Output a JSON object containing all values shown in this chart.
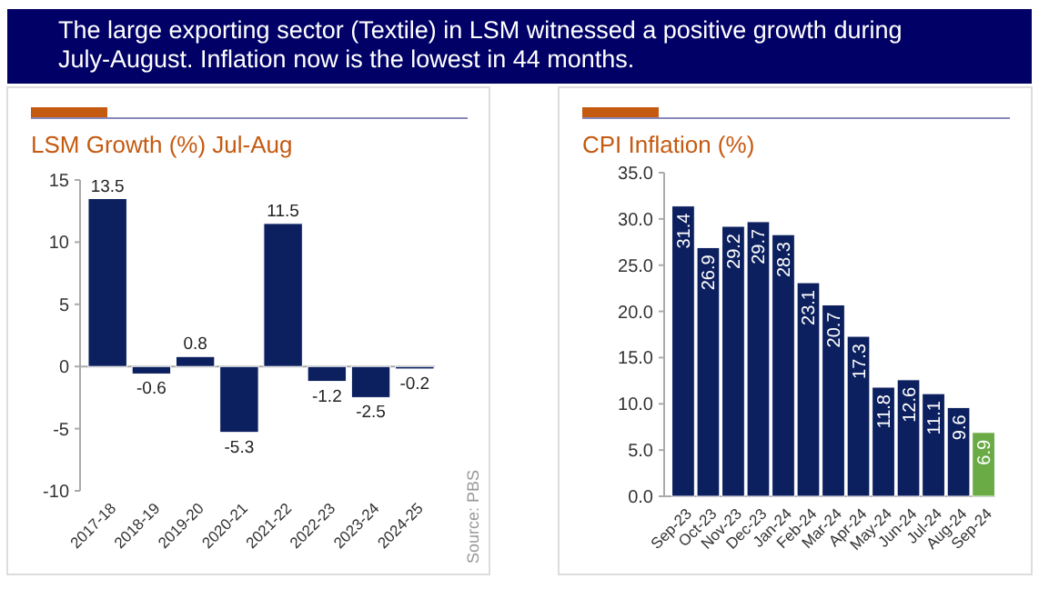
{
  "chart_data": [
    {
      "type": "other",
      "title": "The large exporting sector (Textile) in LSM witnessed a positive growth during July-August.  Inflation now is the lowest in 44 months."
    },
    {
      "type": "bar",
      "title": "LSM Growth (%) Jul-Aug",
      "categories": [
        "2017-18",
        "2018-19",
        "2019-20",
        "2020-21",
        "2021-22",
        "2022-23",
        "2023-24",
        "2024-25"
      ],
      "values": [
        13.5,
        -0.6,
        0.8,
        -5.3,
        11.5,
        -1.2,
        -2.5,
        -0.2
      ],
      "color": "#0c1f5e",
      "ylim": [
        -10,
        15
      ],
      "yticks": [
        -10,
        -5,
        0,
        5,
        10,
        15
      ],
      "data_labels": true,
      "annotations": [
        "Source: PBS"
      ]
    },
    {
      "type": "bar",
      "title": "CPI Inflation (%)",
      "categories": [
        "Sep-23",
        "Oct-23",
        "Nov-23",
        "Dec-23",
        "Jan-24",
        "Feb-24",
        "Mar-24",
        "Apr-24",
        "May-24",
        "Jun-24",
        "Jul-24",
        "Aug-24",
        "Sep-24"
      ],
      "values": [
        31.4,
        26.9,
        29.2,
        29.7,
        28.3,
        23.1,
        20.7,
        17.3,
        11.8,
        12.6,
        11.1,
        9.6,
        6.9
      ],
      "colors": [
        "#0c1f5e",
        "#0c1f5e",
        "#0c1f5e",
        "#0c1f5e",
        "#0c1f5e",
        "#0c1f5e",
        "#0c1f5e",
        "#0c1f5e",
        "#0c1f5e",
        "#0c1f5e",
        "#0c1f5e",
        "#0c1f5e",
        "#6aab45"
      ],
      "ylim": [
        0,
        35
      ],
      "yticks": [
        {
          "value": 0,
          "label": "0.0"
        },
        {
          "value": 5,
          "label": "5.0"
        },
        {
          "value": 10,
          "label": "10.0"
        },
        {
          "value": 15,
          "label": "15.0"
        },
        {
          "value": 20,
          "label": "20.0"
        },
        {
          "value": 25,
          "label": "25.0"
        },
        {
          "value": 30,
          "label": "30.0"
        },
        {
          "value": 35,
          "label": "35.0"
        }
      ],
      "data_labels": true
    }
  ]
}
